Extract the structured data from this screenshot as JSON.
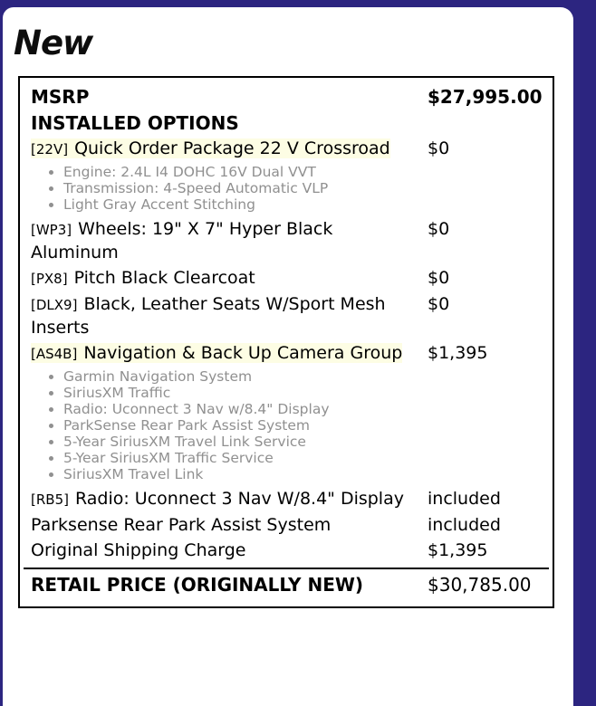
{
  "page": {
    "heading": "New"
  },
  "colors": {
    "page_background": "#2c2580",
    "panel_background": "#ffffff",
    "option_highlight": "#fdfde4",
    "detail_text": "#909090",
    "text": "#000000"
  },
  "pricing": {
    "msrp_label": "MSRP",
    "msrp_value": "$27,995.00",
    "installed_options_label": "INSTALLED OPTIONS",
    "options": [
      {
        "code": "[22V]",
        "name": "Quick Order Package 22 V Crossroad",
        "price": "$0",
        "highlighted": true,
        "details": [
          "Engine: 2.4L I4 DOHC 16V Dual VVT",
          "Transmission: 4-Speed Automatic VLP",
          "Light Gray Accent Stitching"
        ]
      },
      {
        "code": "[WP3]",
        "name": "Wheels: 19\" X 7\" Hyper Black Aluminum",
        "price": "$0",
        "highlighted": false,
        "details": []
      },
      {
        "code": "[PX8]",
        "name": "Pitch Black Clearcoat",
        "price": "$0",
        "highlighted": false,
        "details": []
      },
      {
        "code": "[DLX9]",
        "name": "Black, Leather Seats W/Sport Mesh Inserts",
        "price": "$0",
        "highlighted": false,
        "details": []
      },
      {
        "code": "[AS4B]",
        "name": "Navigation & Back Up Camera Group",
        "price": "$1,395",
        "highlighted": true,
        "details": [
          "Garmin Navigation System",
          "SiriusXM Traffic",
          "Radio: Uconnect 3 Nav w/8.4\" Display",
          "ParkSense Rear Park Assist System",
          "5-Year SiriusXM Travel Link Service",
          "5-Year SiriusXM Traffic Service",
          "SiriusXM Travel Link"
        ]
      },
      {
        "code": "[RB5]",
        "name": "Radio: Uconnect 3 Nav W/8.4\" Display",
        "price": "included",
        "highlighted": false,
        "details": []
      },
      {
        "code": "",
        "name": "Parksense Rear Park Assist System",
        "price": "included",
        "highlighted": false,
        "details": []
      },
      {
        "code": "",
        "name": "Original Shipping Charge",
        "price": "$1,395",
        "highlighted": false,
        "details": []
      }
    ],
    "retail_label": "RETAIL PRICE (ORIGINALLY NEW)",
    "retail_value": "$30,785.00"
  }
}
